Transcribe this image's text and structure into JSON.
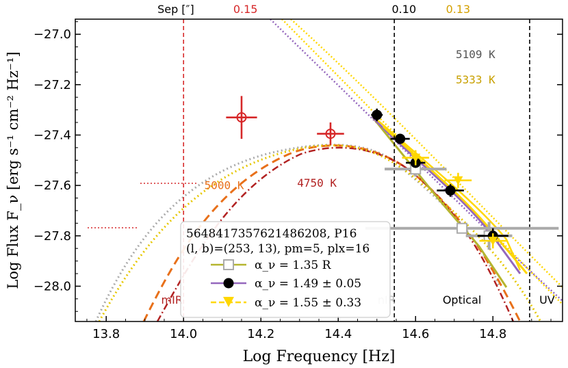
{
  "chart_data": {
    "type": "scatter",
    "xlabel": "Log Frequency [Hz]",
    "ylabel": "Log Flux F_ν [erg s⁻¹ cm⁻² Hz⁻¹]",
    "xlim": [
      13.72,
      14.98
    ],
    "ylim": [
      -28.14,
      -26.94
    ],
    "xticks": [
      13.8,
      14.0,
      14.2,
      14.4,
      14.6,
      14.8
    ],
    "xtick_labels": [
      "13.8",
      "14.0",
      "14.2",
      "14.4",
      "14.6",
      "14.8"
    ],
    "yticks": [
      -27.0,
      -27.2,
      -27.4,
      -27.6,
      -27.8,
      -28.0
    ],
    "ytick_labels": [
      "−27.0",
      "−27.2",
      "−27.4",
      "−27.6",
      "−27.8",
      "−28.0"
    ],
    "top_axis": {
      "sep_label": "Sep [″]",
      "labels": [
        {
          "x": 14.16,
          "text": "0.15",
          "color": "#d62728"
        },
        {
          "x": 14.57,
          "text": "0.10",
          "color": "#000000"
        },
        {
          "x": 14.71,
          "text": "0.13",
          "color": "#d4a000"
        }
      ]
    },
    "vlines": [
      {
        "x": 14.0,
        "color": "#d62728"
      },
      {
        "x": 14.545,
        "color": "#000000"
      },
      {
        "x": 14.895,
        "color": "#000000"
      }
    ],
    "regions": [
      {
        "x": 13.97,
        "y": -28.07,
        "text": "mIR",
        "color": "#b22222"
      },
      {
        "x": 14.525,
        "y": -28.07,
        "text": "nIR",
        "color": "#bbbbbb"
      },
      {
        "x": 14.72,
        "y": -28.07,
        "text": "Optical",
        "color": "#000000"
      },
      {
        "x": 14.94,
        "y": -28.07,
        "text": "UV",
        "color": "#000000"
      }
    ],
    "temperature_labels": [
      {
        "x": 14.755,
        "y": -27.095,
        "text": "5109 K",
        "color": "#555555"
      },
      {
        "x": 14.755,
        "y": -27.195,
        "text": "5333 K",
        "color": "#c8a000"
      },
      {
        "x": 14.105,
        "y": -27.615,
        "text": "5000 K",
        "color": "#e8701a"
      },
      {
        "x": 14.345,
        "y": -27.605,
        "text": "4750 K",
        "color": "#b22222"
      }
    ],
    "series": [
      {
        "name": "mIR (red open)",
        "color": "#d62728",
        "points": [
          {
            "x": 14.15,
            "y": -27.33,
            "xerr": 0.04,
            "yerr": 0.085
          },
          {
            "x": 14.38,
            "y": -27.395,
            "xerr": 0.035,
            "yerr": 0.045
          }
        ]
      },
      {
        "name": "α_ν = 1.35  R",
        "color": "#aaaaaa",
        "points": [
          {
            "x": 14.6,
            "y": -27.535,
            "xerr": 0.08,
            "yerr": 0.03
          },
          {
            "x": 14.72,
            "y": -27.77,
            "xerr": 0.25,
            "yerr": 0.015
          },
          {
            "x": 14.79,
            "y": -27.8,
            "xerr": 0.06,
            "yerr": 0.055
          }
        ]
      },
      {
        "name": "α_ν = 1.49 ± 0.05",
        "color": "#000000",
        "points": [
          {
            "x": 14.5,
            "y": -27.32,
            "xerr": 0.015,
            "yerr": 0.025
          },
          {
            "x": 14.56,
            "y": -27.415,
            "xerr": 0.025,
            "yerr": 0.02
          },
          {
            "x": 14.6,
            "y": -27.51,
            "xerr": 0.025,
            "yerr": 0.02
          },
          {
            "x": 14.69,
            "y": -27.62,
            "xerr": 0.035,
            "yerr": 0.025
          },
          {
            "x": 14.8,
            "y": -27.8,
            "xerr": 0.04,
            "yerr": 0.03
          }
        ]
      },
      {
        "name": "α_ν = 1.55 ± 0.33",
        "color": "#ffd700",
        "points": [
          {
            "x": 14.6,
            "y": -27.49,
            "xerr": 0.035,
            "yerr": 0.03
          },
          {
            "x": 14.71,
            "y": -27.58,
            "xerr": 0.035,
            "yerr": 0.03
          },
          {
            "x": 14.8,
            "y": -27.82,
            "xerr": 0.035,
            "yerr": 0.03
          }
        ]
      }
    ],
    "legend": {
      "title_line1": "5648417357621486208, P16",
      "title_line2": "(l, b)=(253, 13), pm=5, plx=16",
      "entries": [
        {
          "label": "α_ν = 1.35  R",
          "color": "#b5b52f",
          "marker": "open-square"
        },
        {
          "label": "α_ν = 1.49 ± 0.05",
          "color": "#9467bd",
          "marker": "filled-circle"
        },
        {
          "label": "α_ν = 1.55 ± 0.33",
          "color": "#ffd700",
          "marker": "filled-triangle-down"
        }
      ]
    }
  }
}
